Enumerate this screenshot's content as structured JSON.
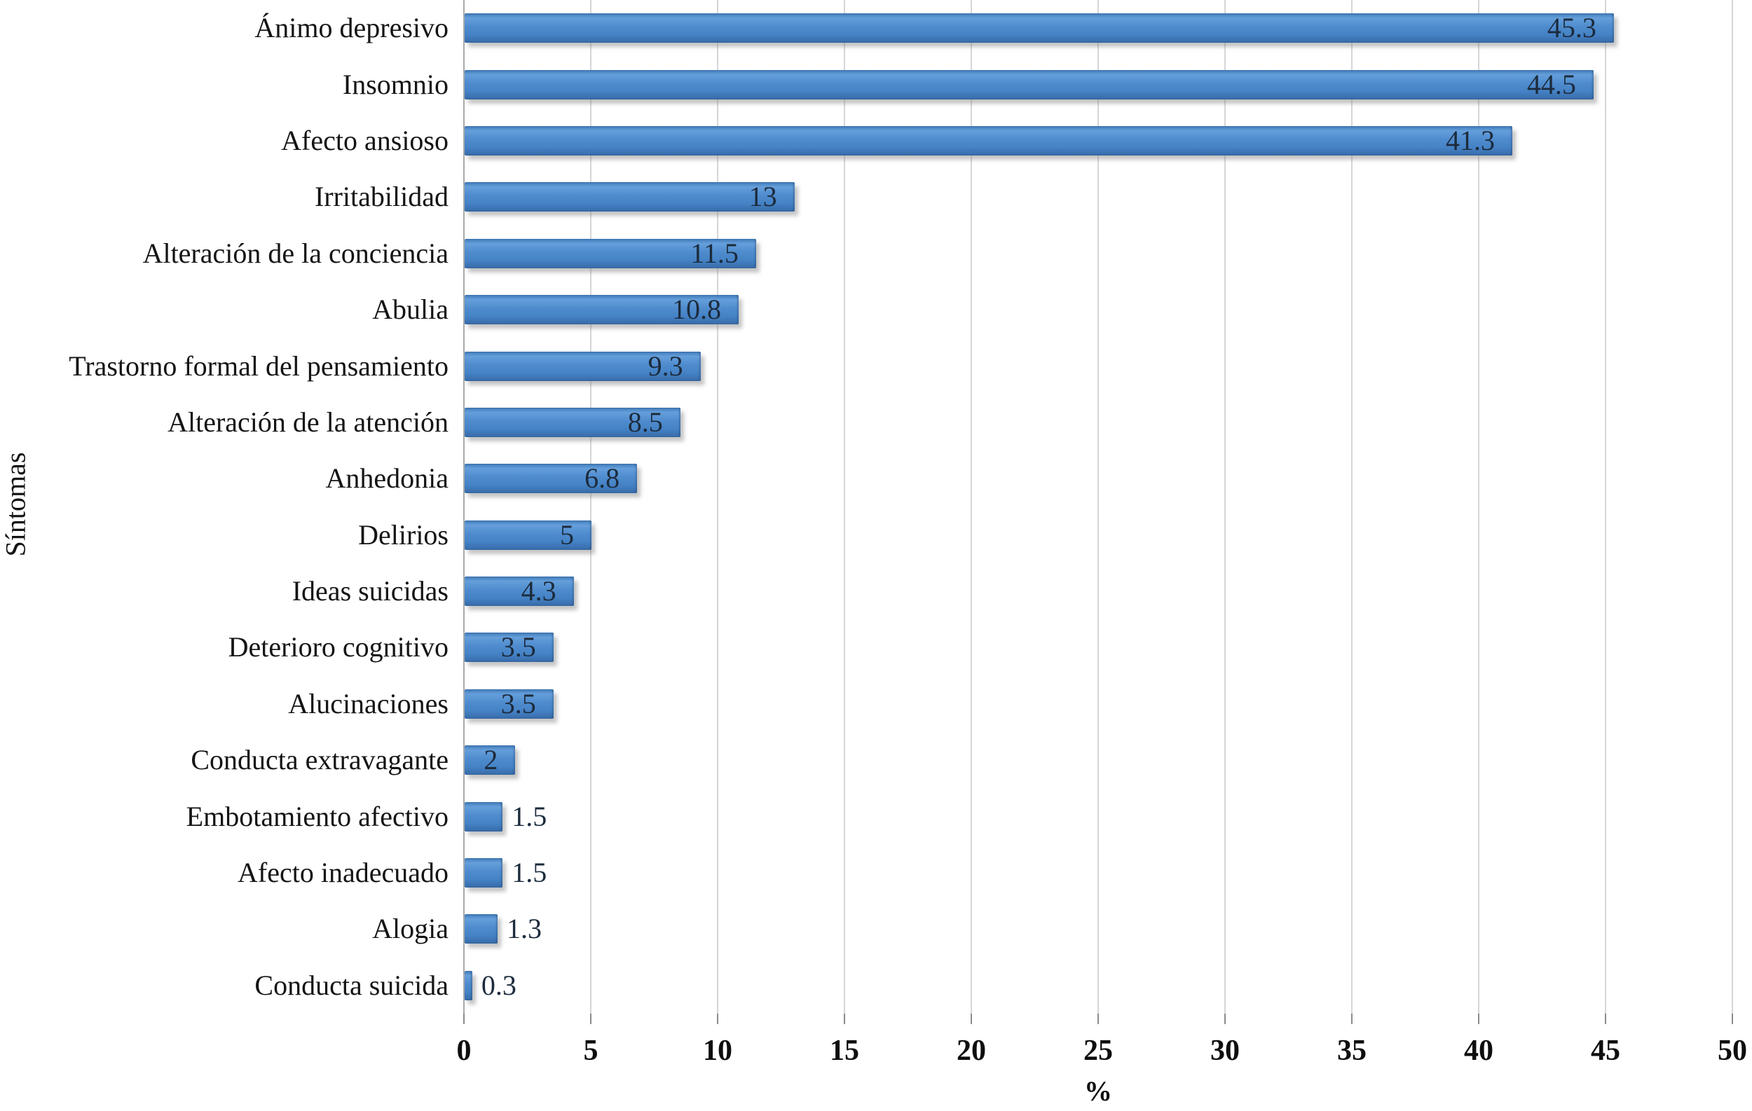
{
  "chart_data": {
    "type": "bar",
    "orientation": "horizontal",
    "title": "",
    "xlabel": "%",
    "ylabel": "Síntomas",
    "xlim": [
      0,
      50
    ],
    "xticks": [
      0,
      5,
      10,
      15,
      20,
      25,
      30,
      35,
      40,
      45,
      50
    ],
    "grid": "vertical-gridlines-only",
    "legend_position": "none",
    "bar_color": "#4a86c6",
    "value_label_color": "#1c2b3c",
    "categories": [
      "Ánimo depresivo",
      "Insomnio",
      "Afecto ansioso",
      "Irritabilidad",
      "Alteración de la conciencia",
      "Abulia",
      "Trastorno formal del pensamiento",
      "Alteración de la atención",
      "Anhedonia",
      "Delirios",
      "Ideas suicidas",
      "Deterioro cognitivo",
      "Alucinaciones",
      "Conducta extravagante",
      "Embotamiento afectivo",
      "Afecto inadecuado",
      "Alogia",
      "Conducta suicida"
    ],
    "values": [
      45.3,
      44.5,
      41.3,
      13,
      11.5,
      10.8,
      9.3,
      8.5,
      6.8,
      5,
      4.3,
      3.5,
      3.5,
      2,
      1.5,
      1.5,
      1.3,
      0.3
    ],
    "value_labels": [
      "45.3",
      "44.5",
      "41.3",
      "13",
      "11.5",
      "10.8",
      "9.3",
      "8.5",
      "6.8",
      "5",
      "4.3",
      "3.5",
      "3.5",
      "2",
      "1.5",
      "1.5",
      "1.3",
      "0.3"
    ]
  }
}
